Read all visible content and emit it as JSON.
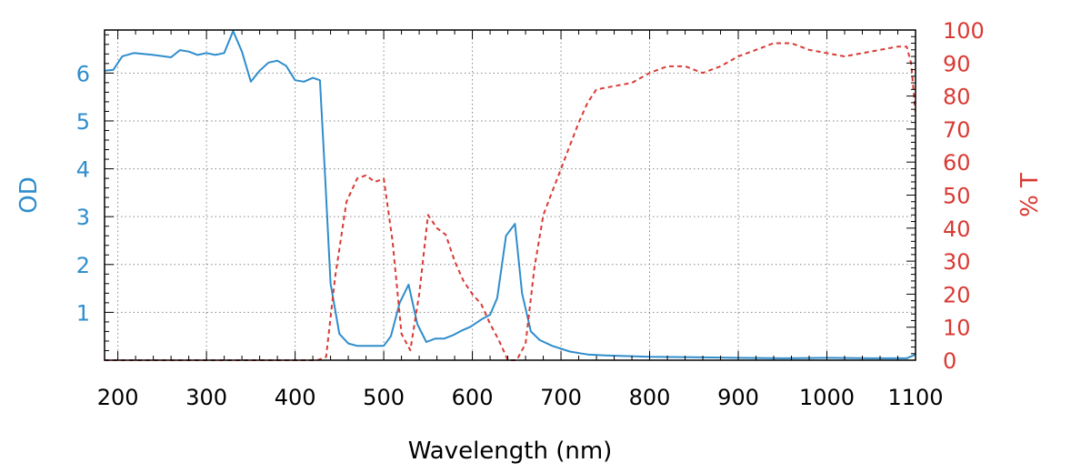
{
  "chart_data": {
    "type": "line",
    "xlabel": "Wavelength (nm)",
    "ylabel_left": "OD",
    "ylabel_right": "% T",
    "xlim": [
      185,
      1100
    ],
    "ylim_left": [
      0,
      6.9
    ],
    "ylim_right": [
      0,
      100
    ],
    "x_ticks": [
      200,
      300,
      400,
      500,
      600,
      700,
      800,
      900,
      1000,
      1100
    ],
    "y_left_ticks": [
      1,
      2,
      3,
      4,
      5,
      6
    ],
    "y_right_ticks": [
      0,
      10,
      20,
      30,
      40,
      50,
      60,
      70,
      80,
      90,
      100
    ],
    "grid": true,
    "colors": {
      "od": "#2f8dcc",
      "transmission": "#d93a34",
      "axes": "#000000",
      "grid": "#888888"
    },
    "series": [
      {
        "axis": "left",
        "style": "solid",
        "x": [
          185,
          195,
          205,
          218,
          240,
          260,
          270,
          280,
          290,
          300,
          310,
          320,
          330,
          340,
          350,
          360,
          370,
          380,
          390,
          400,
          410,
          420,
          428,
          434,
          440,
          450,
          460,
          470,
          480,
          490,
          500,
          508,
          518,
          528,
          538,
          548,
          558,
          568,
          578,
          588,
          598,
          610,
          620,
          628,
          638,
          648,
          656,
          666,
          676,
          690,
          710,
          730,
          750,
          800,
          850,
          900,
          950,
          1000,
          1050,
          1090,
          1100
        ],
        "values": [
          6.05,
          6.07,
          6.35,
          6.42,
          6.38,
          6.33,
          6.48,
          6.45,
          6.38,
          6.42,
          6.38,
          6.42,
          6.88,
          6.45,
          5.82,
          6.05,
          6.22,
          6.26,
          6.15,
          5.85,
          5.82,
          5.9,
          5.85,
          3.8,
          1.6,
          0.55,
          0.35,
          0.3,
          0.3,
          0.3,
          0.3,
          0.5,
          1.2,
          1.58,
          0.75,
          0.38,
          0.45,
          0.45,
          0.52,
          0.62,
          0.7,
          0.85,
          0.95,
          1.3,
          2.6,
          2.85,
          1.4,
          0.6,
          0.42,
          0.3,
          0.18,
          0.12,
          0.1,
          0.07,
          0.06,
          0.05,
          0.04,
          0.05,
          0.04,
          0.04,
          0.12
        ]
      },
      {
        "axis": "right",
        "style": "dashed",
        "x": [
          185,
          300,
          425,
          435,
          445,
          458,
          470,
          480,
          490,
          500,
          510,
          520,
          530,
          540,
          550,
          560,
          570,
          580,
          590,
          600,
          610,
          620,
          630,
          640,
          650,
          660,
          670,
          680,
          690,
          700,
          710,
          720,
          730,
          740,
          760,
          780,
          800,
          820,
          840,
          860,
          880,
          900,
          920,
          940,
          960,
          980,
          1000,
          1020,
          1040,
          1060,
          1080,
          1090,
          1095,
          1100
        ],
        "values": [
          0,
          0,
          0,
          1,
          25,
          48,
          55,
          56,
          54,
          55,
          36,
          8,
          3,
          20,
          44,
          40,
          38,
          30,
          24,
          20,
          17,
          11,
          6,
          0,
          0,
          5,
          28,
          44,
          51,
          58,
          65,
          72,
          78,
          82,
          83,
          84,
          87,
          89,
          89,
          87,
          89,
          92,
          94,
          96,
          96,
          94,
          93,
          92,
          93,
          94,
          95,
          95,
          90,
          75
        ]
      }
    ]
  }
}
